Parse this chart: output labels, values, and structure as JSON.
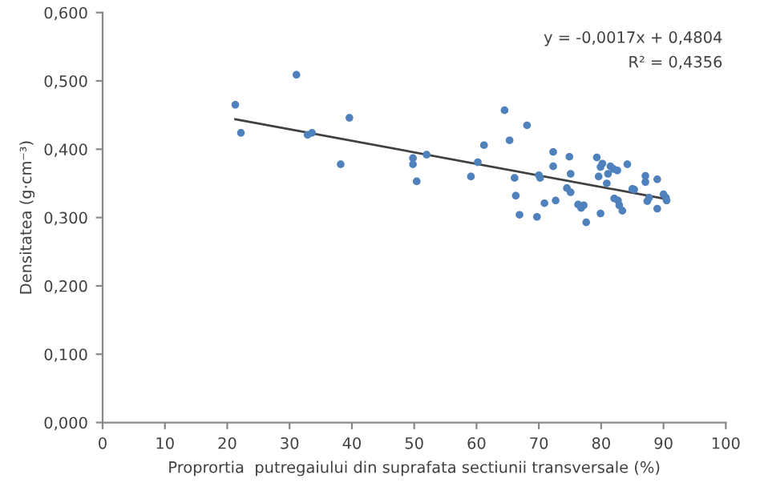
{
  "chart_data": {
    "type": "scatter",
    "xlabel": "Proprortia  putregaiului din suprafata sectiunii transversale (%)",
    "ylabel": "Densitatea (g·cm⁻³)",
    "annotations": [
      "y = -0,0017x + 0,4804",
      "R² = 0,4356"
    ],
    "grid": false,
    "legend": false,
    "xlim": [
      0,
      100
    ],
    "xticks": [
      0,
      10,
      20,
      30,
      40,
      50,
      60,
      70,
      80,
      90,
      100
    ],
    "ylim": [
      0,
      0.6
    ],
    "yticks": [
      {
        "value": 0,
        "label": "0,000"
      },
      {
        "value": 0.1,
        "label": "0,100"
      },
      {
        "value": 0.2,
        "label": "0,200"
      },
      {
        "value": 0.3,
        "label": "0,300"
      },
      {
        "value": 0.4,
        "label": "0,400"
      },
      {
        "value": 0.5,
        "label": "0,500"
      },
      {
        "value": 0.6,
        "label": "0,600"
      }
    ],
    "series": [
      {
        "marker": "circle",
        "color": "#4f81bd",
        "x": [
          21.3,
          22.2,
          31.1,
          32.9,
          33.6,
          38.2,
          39.6,
          49.8,
          49.8,
          50.4,
          52.0,
          59.1,
          60.2,
          61.2,
          64.5,
          65.3,
          66.1,
          66.3,
          66.9,
          68.1,
          69.7,
          70.0,
          70.2,
          70.9,
          72.3,
          72.3,
          72.7,
          74.5,
          74.9,
          75.1,
          75.1,
          76.3,
          76.8,
          77.2,
          77.6,
          79.3,
          79.6,
          79.9,
          79.9,
          80.2,
          80.9,
          81.1,
          81.5,
          82.0,
          82.1,
          82.6,
          82.7,
          82.9,
          83.4,
          84.2,
          85.0,
          85.3,
          87.1,
          87.1,
          87.4,
          87.7,
          89.0,
          89.0,
          90.0,
          90.4,
          90.5
        ],
        "values": [
          0.465,
          0.424,
          0.509,
          0.421,
          0.424,
          0.378,
          0.446,
          0.387,
          0.378,
          0.353,
          0.392,
          0.36,
          0.381,
          0.406,
          0.457,
          0.413,
          0.358,
          0.332,
          0.304,
          0.435,
          0.301,
          0.362,
          0.358,
          0.321,
          0.396,
          0.375,
          0.325,
          0.343,
          0.389,
          0.364,
          0.337,
          0.319,
          0.314,
          0.318,
          0.293,
          0.388,
          0.36,
          0.374,
          0.306,
          0.379,
          0.35,
          0.364,
          0.375,
          0.371,
          0.328,
          0.369,
          0.325,
          0.318,
          0.31,
          0.378,
          0.342,
          0.341,
          0.361,
          0.352,
          0.324,
          0.329,
          0.356,
          0.313,
          0.334,
          0.329,
          0.325
        ]
      },
      {
        "type": "line",
        "color": "#404040",
        "x": [
          21.3,
          90.5
        ],
        "values": [
          0.444,
          0.327
        ]
      }
    ]
  }
}
